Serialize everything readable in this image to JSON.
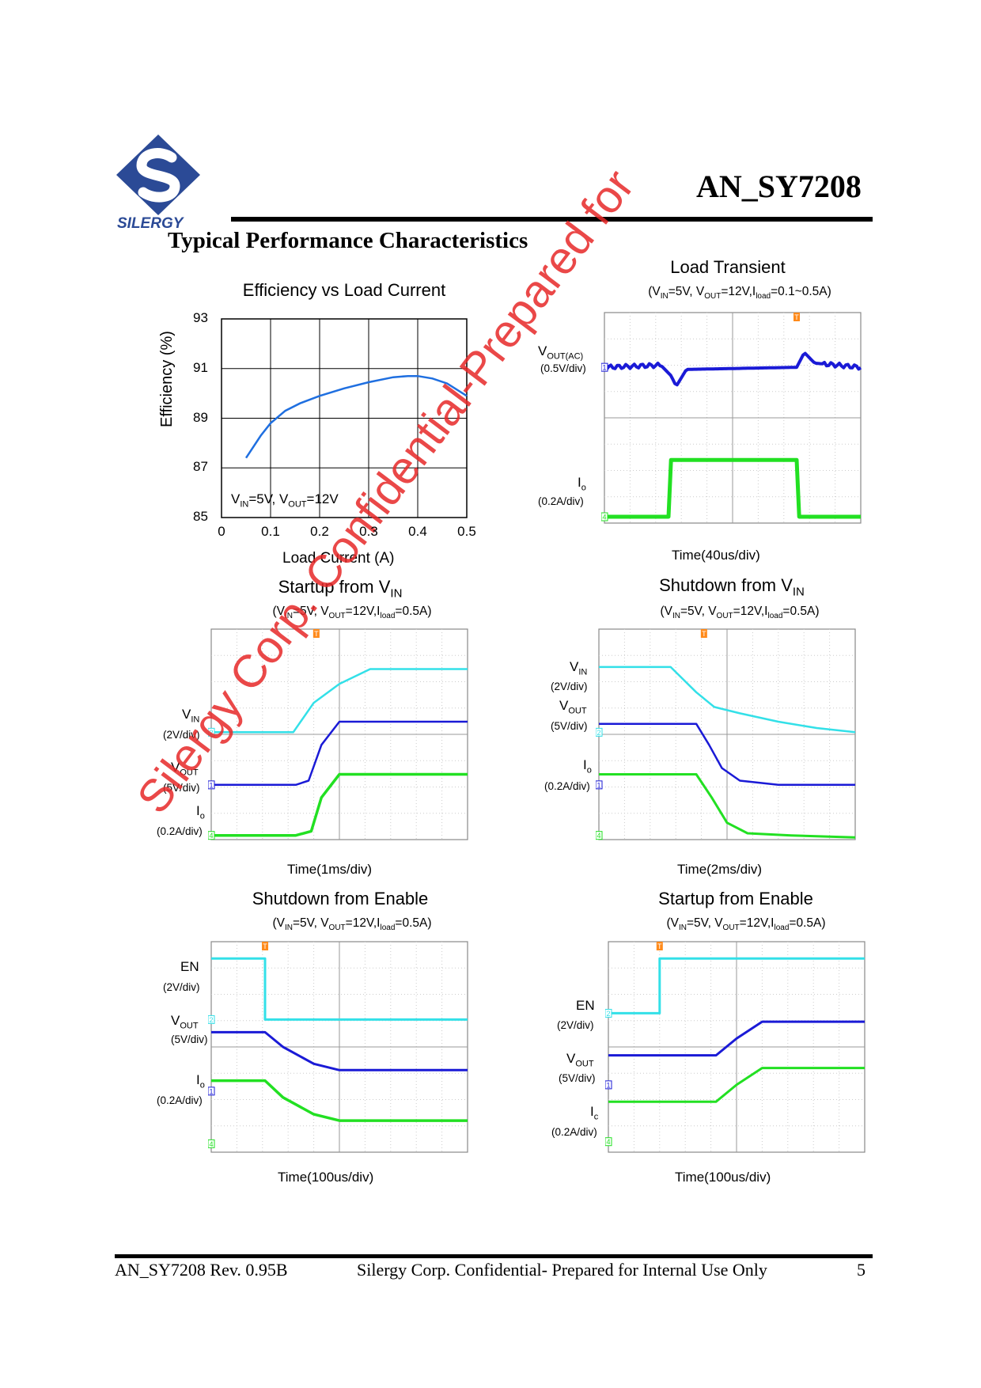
{
  "header": {
    "logo_text": "SILERGY",
    "doc_id": "AN_SY7208",
    "section_title": "Typical Performance Characteristics"
  },
  "efficiency_plot": {
    "title": "Efficiency vs Load Current",
    "annotation_parts": [
      "V",
      "IN",
      "=5V, V",
      "OUT",
      "=12V"
    ],
    "chart_data": {
      "type": "line",
      "title": "Efficiency vs Load Current",
      "xlabel": "Load Current (A)",
      "ylabel": "Efficiency (%)",
      "xlim": [
        0,
        0.5
      ],
      "ylim": [
        85,
        93
      ],
      "x_ticks": [
        "0",
        "0.1",
        "0.2",
        "0.3",
        "0.4",
        "0.5"
      ],
      "y_ticks": [
        "85",
        "87",
        "89",
        "91",
        "93"
      ],
      "grid": true,
      "line_color": "#1f6fe0",
      "series": [
        {
          "x": [
            0.05,
            0.08,
            0.1,
            0.13,
            0.16,
            0.2,
            0.25,
            0.3,
            0.35,
            0.38,
            0.4,
            0.43,
            0.46,
            0.5
          ],
          "y": [
            87.4,
            88.3,
            88.8,
            89.3,
            89.6,
            89.9,
            90.2,
            90.45,
            90.65,
            90.7,
            90.7,
            90.6,
            90.4,
            89.9
          ]
        }
      ]
    }
  },
  "scopes": [
    {
      "title_main": "Load Transient",
      "title_sub": "",
      "cond_parts": [
        "(V",
        "IN",
        "=5V, V",
        "OUT",
        "=12V,I",
        "load",
        "=0.1~0.5A)"
      ],
      "time_label": "Time(40us/div)",
      "channels": [
        {
          "name_main": "V",
          "name_sub": "OUT(AC)",
          "scale": "(0.5V/div)"
        },
        {
          "name_main": "I",
          "name_sub": "o",
          "scale": "(0.2A/div)"
        }
      ]
    },
    {
      "title_main": "Startup from V",
      "title_sub": "IN",
      "cond_parts": [
        "(V",
        "IN",
        "=5V, V",
        "OUT",
        "=12V,I",
        "load",
        "=0.5A)"
      ],
      "time_label": "Time(1ms/div)",
      "channels": [
        {
          "name_main": "V",
          "name_sub": "IN",
          "scale": "(2V/div)"
        },
        {
          "name_main": "V",
          "name_sub": "OUT",
          "scale": "(5V/div)"
        },
        {
          "name_main": "I",
          "name_sub": "o",
          "scale": "(0.2A/div)"
        }
      ]
    },
    {
      "title_main": "Shutdown from V",
      "title_sub": "IN",
      "cond_parts": [
        "(V",
        "IN",
        "=5V, V",
        "OUT",
        "=12V,I",
        "load",
        "=0.5A)"
      ],
      "time_label": "Time(2ms/div)",
      "channels": [
        {
          "name_main": "V",
          "name_sub": "IN",
          "scale": "(2V/div)"
        },
        {
          "name_main": "V",
          "name_sub": "OUT",
          "scale": "(5V/div)"
        },
        {
          "name_main": "I",
          "name_sub": "o",
          "scale": "(0.2A/div)"
        }
      ]
    },
    {
      "title_main": "Shutdown from Enable",
      "title_sub": "",
      "cond_parts": [
        "(V",
        "IN",
        "=5V, V",
        "OUT",
        "=12V,I",
        "load",
        "=0.5A)"
      ],
      "time_label": "Time(100us/div)",
      "channels": [
        {
          "name_main": "EN",
          "name_sub": "",
          "scale": "(2V/div)"
        },
        {
          "name_main": "V",
          "name_sub": "OUT",
          "scale": "(5V/div)"
        },
        {
          "name_main": "I",
          "name_sub": "o",
          "scale": "(0.2A/div)"
        }
      ]
    },
    {
      "title_main": "Startup from Enable",
      "title_sub": "",
      "cond_parts": [
        "(V",
        "IN",
        "=5V, V",
        "OUT",
        "=12V,I",
        "load",
        "=0.5A)"
      ],
      "time_label": "Time(100us/div)",
      "channels": [
        {
          "name_main": "EN",
          "name_sub": "",
          "scale": "(2V/div)"
        },
        {
          "name_main": "V",
          "name_sub": "OUT",
          "scale": "(5V/div)"
        },
        {
          "name_main": "I",
          "name_sub": "c",
          "scale": "(0.2A/div)"
        }
      ]
    }
  ],
  "scope_markers": {
    "trigger": "T",
    "ch1": "1",
    "ch2": "2",
    "ch4": "4"
  },
  "trace_colors": {
    "cyan": "#33e0e8",
    "blue": "#1a1ad6",
    "green": "#22e022"
  },
  "watermark": "Silergy Corp. Confidential-Prepared for",
  "footer": {
    "left": "AN_SY7208 Rev. 0.95B",
    "center": "Silergy Corp. Confidential- Prepared for Internal Use Only",
    "page": "5"
  }
}
